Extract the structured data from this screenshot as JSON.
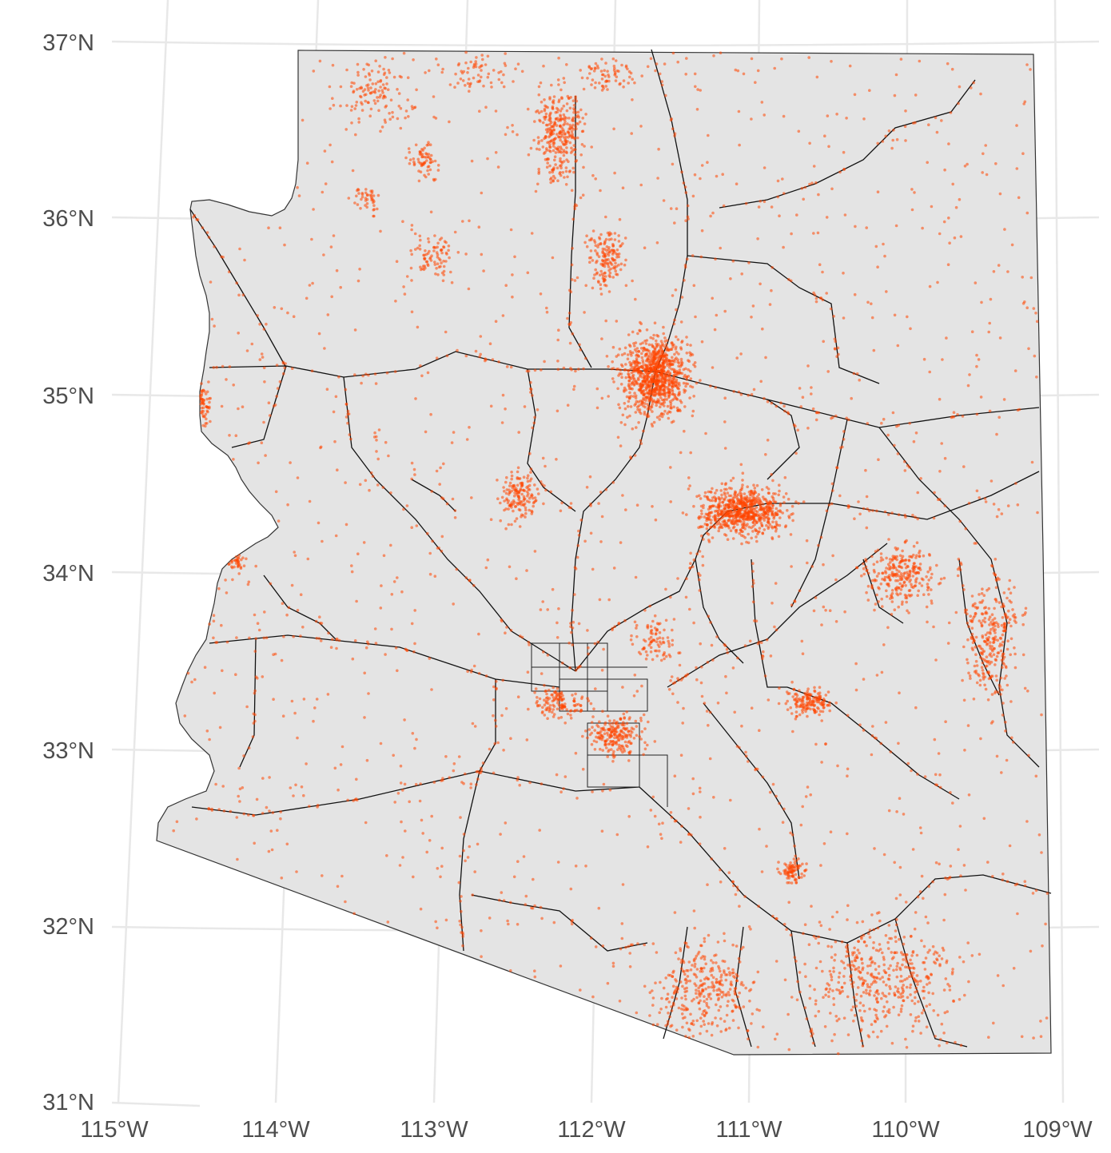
{
  "map": {
    "background": "#ffffff",
    "state_fill": "#e4e4e4",
    "state_outline": "#333333",
    "road_color": "#111111",
    "point_color": "#ff4500",
    "graticule_color": "#e8e8e8",
    "lat_labels": [
      "37°N",
      "36°N",
      "35°N",
      "34°N",
      "33°N",
      "32°N",
      "31°N"
    ],
    "lon_labels": [
      "115°W",
      "114°W",
      "113°W",
      "112°W",
      "111°W",
      "110°W",
      "109°W"
    ]
  }
}
